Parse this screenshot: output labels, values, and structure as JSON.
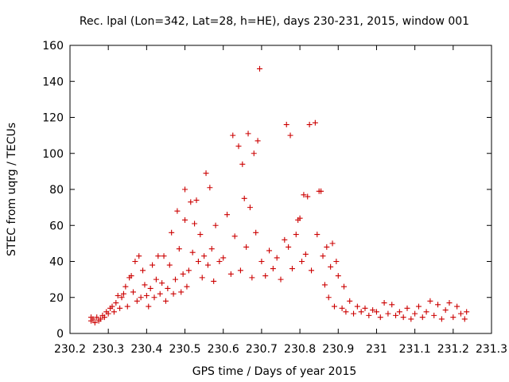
{
  "chart_data": {
    "type": "scatter",
    "title": "Rec. lpal (Lon=342, Lat=28, h=HE), days 230-231, 2015, window 001",
    "xlabel": "GPS time / Days of year 2015",
    "ylabel": "STEC from uqrg / TECUs",
    "xlim": [
      230.2,
      231.3
    ],
    "ylim": [
      0,
      160
    ],
    "xticks": [
      "230.2",
      "230.3",
      "230.4",
      "230.5",
      "230.6",
      "230.7",
      "230.8",
      "230.9",
      "231",
      "231.1",
      "231.2",
      "231.3"
    ],
    "yticks": [
      "0",
      "20",
      "40",
      "60",
      "80",
      "100",
      "120",
      "140",
      "160"
    ],
    "grid": false,
    "marker": "+",
    "color": "#cc0000",
    "points": [
      [
        230.255,
        7
      ],
      [
        230.255,
        9
      ],
      [
        230.26,
        8
      ],
      [
        230.265,
        6
      ],
      [
        230.27,
        9
      ],
      [
        230.275,
        7
      ],
      [
        230.28,
        8
      ],
      [
        230.285,
        10
      ],
      [
        230.29,
        9
      ],
      [
        230.295,
        12
      ],
      [
        230.3,
        11
      ],
      [
        230.305,
        14
      ],
      [
        230.31,
        15
      ],
      [
        230.315,
        12
      ],
      [
        230.32,
        17
      ],
      [
        230.325,
        21
      ],
      [
        230.33,
        14
      ],
      [
        230.335,
        20
      ],
      [
        230.34,
        22
      ],
      [
        230.345,
        26
      ],
      [
        230.35,
        15
      ],
      [
        230.355,
        31
      ],
      [
        230.36,
        32
      ],
      [
        230.365,
        23
      ],
      [
        230.37,
        40
      ],
      [
        230.375,
        18
      ],
      [
        230.38,
        43
      ],
      [
        230.385,
        20
      ],
      [
        230.39,
        35
      ],
      [
        230.395,
        27
      ],
      [
        230.4,
        21
      ],
      [
        230.405,
        15
      ],
      [
        230.41,
        25
      ],
      [
        230.415,
        38
      ],
      [
        230.42,
        20
      ],
      [
        230.425,
        30
      ],
      [
        230.43,
        43
      ],
      [
        230.435,
        22
      ],
      [
        230.44,
        28
      ],
      [
        230.445,
        43
      ],
      [
        230.45,
        18
      ],
      [
        230.455,
        25
      ],
      [
        230.46,
        38
      ],
      [
        230.465,
        56
      ],
      [
        230.47,
        22
      ],
      [
        230.475,
        30
      ],
      [
        230.48,
        68
      ],
      [
        230.485,
        47
      ],
      [
        230.49,
        23
      ],
      [
        230.495,
        33
      ],
      [
        230.5,
        80
      ],
      [
        230.5,
        63
      ],
      [
        230.505,
        26
      ],
      [
        230.51,
        35
      ],
      [
        230.515,
        73
      ],
      [
        230.52,
        45
      ],
      [
        230.525,
        61
      ],
      [
        230.53,
        74
      ],
      [
        230.535,
        40
      ],
      [
        230.54,
        55
      ],
      [
        230.545,
        31
      ],
      [
        230.55,
        43
      ],
      [
        230.555,
        89
      ],
      [
        230.56,
        38
      ],
      [
        230.565,
        81
      ],
      [
        230.57,
        47
      ],
      [
        230.575,
        29
      ],
      [
        230.58,
        60
      ],
      [
        230.59,
        40
      ],
      [
        230.6,
        42
      ],
      [
        230.61,
        66
      ],
      [
        230.62,
        33
      ],
      [
        230.625,
        110
      ],
      [
        230.63,
        54
      ],
      [
        230.64,
        104
      ],
      [
        230.645,
        35
      ],
      [
        230.65,
        94
      ],
      [
        230.655,
        75
      ],
      [
        230.66,
        48
      ],
      [
        230.665,
        111
      ],
      [
        230.67,
        70
      ],
      [
        230.675,
        31
      ],
      [
        230.68,
        100
      ],
      [
        230.685,
        56
      ],
      [
        230.69,
        107
      ],
      [
        230.695,
        147
      ],
      [
        230.7,
        40
      ],
      [
        230.71,
        32
      ],
      [
        230.72,
        46
      ],
      [
        230.73,
        36
      ],
      [
        230.74,
        42
      ],
      [
        230.75,
        30
      ],
      [
        230.76,
        52
      ],
      [
        230.765,
        116
      ],
      [
        230.77,
        48
      ],
      [
        230.775,
        110
      ],
      [
        230.78,
        36
      ],
      [
        230.79,
        55
      ],
      [
        230.795,
        63
      ],
      [
        230.8,
        64
      ],
      [
        230.805,
        40
      ],
      [
        230.81,
        77
      ],
      [
        230.815,
        44
      ],
      [
        230.82,
        76
      ],
      [
        230.825,
        116
      ],
      [
        230.83,
        35
      ],
      [
        230.84,
        117
      ],
      [
        230.845,
        55
      ],
      [
        230.85,
        79
      ],
      [
        230.855,
        79
      ],
      [
        230.86,
        43
      ],
      [
        230.865,
        27
      ],
      [
        230.87,
        48
      ],
      [
        230.875,
        20
      ],
      [
        230.88,
        37
      ],
      [
        230.885,
        50
      ],
      [
        230.89,
        15
      ],
      [
        230.895,
        40
      ],
      [
        230.9,
        32
      ],
      [
        230.91,
        14
      ],
      [
        230.915,
        26
      ],
      [
        230.92,
        12
      ],
      [
        230.93,
        18
      ],
      [
        230.94,
        11
      ],
      [
        230.95,
        15
      ],
      [
        230.96,
        12
      ],
      [
        230.97,
        14
      ],
      [
        230.98,
        10
      ],
      [
        230.99,
        13
      ],
      [
        231.0,
        12
      ],
      [
        231.01,
        9
      ],
      [
        231.02,
        17
      ],
      [
        231.03,
        11
      ],
      [
        231.04,
        16
      ],
      [
        231.05,
        10
      ],
      [
        231.06,
        12
      ],
      [
        231.07,
        9
      ],
      [
        231.08,
        14
      ],
      [
        231.09,
        8
      ],
      [
        231.1,
        11
      ],
      [
        231.11,
        15
      ],
      [
        231.12,
        9
      ],
      [
        231.13,
        12
      ],
      [
        231.14,
        18
      ],
      [
        231.15,
        10
      ],
      [
        231.16,
        16
      ],
      [
        231.17,
        8
      ],
      [
        231.18,
        13
      ],
      [
        231.19,
        17
      ],
      [
        231.2,
        9
      ],
      [
        231.21,
        15
      ],
      [
        231.22,
        11
      ],
      [
        231.23,
        8
      ],
      [
        231.235,
        12
      ]
    ]
  }
}
